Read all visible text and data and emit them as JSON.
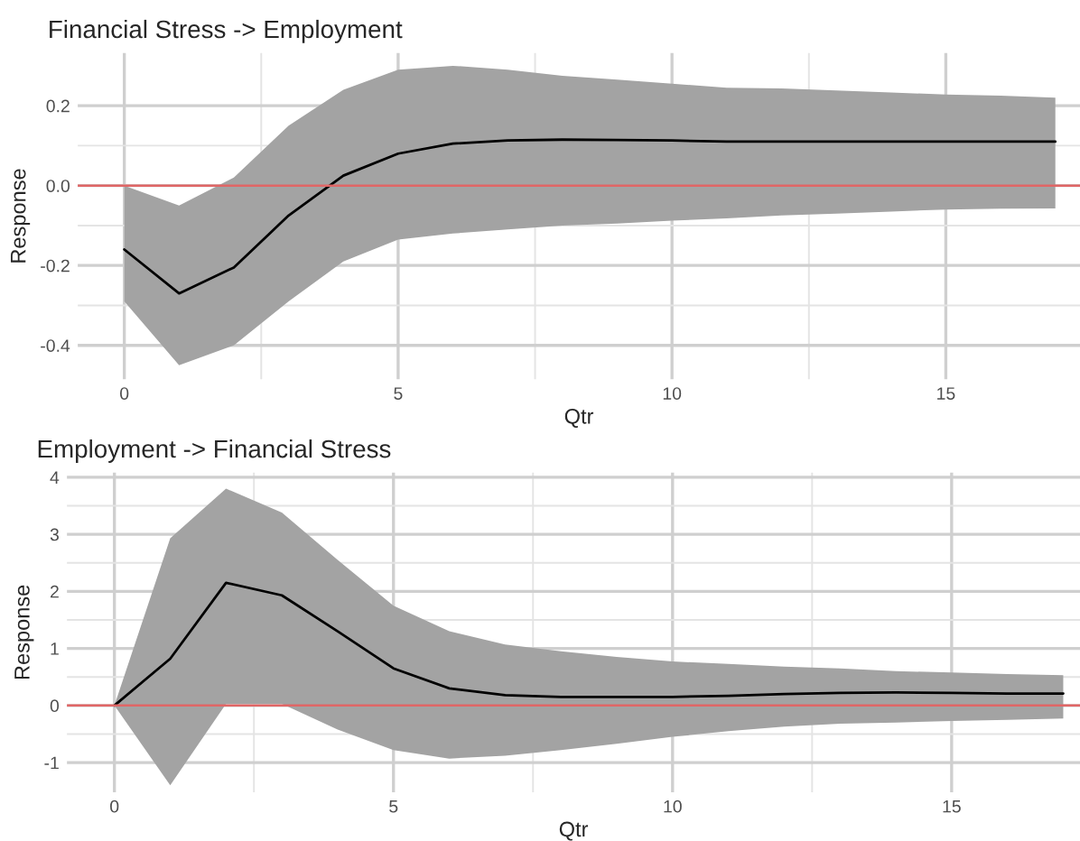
{
  "chart_data": [
    {
      "type": "line",
      "title": "Financial Stress -> Employment",
      "xlabel": "Qtr",
      "ylabel": "Response",
      "x": [
        0,
        1,
        2,
        3,
        4,
        5,
        6,
        7,
        8,
        9,
        10,
        11,
        12,
        13,
        14,
        15,
        16,
        17
      ],
      "series": [
        {
          "color": "#000000",
          "values": [
            -0.16,
            -0.27,
            -0.205,
            -0.075,
            0.025,
            0.08,
            0.105,
            0.113,
            0.115,
            0.114,
            0.113,
            0.11,
            0.11,
            0.11,
            0.11,
            0.11,
            0.11,
            0.11
          ],
          "lower": [
            -0.29,
            -0.45,
            -0.4,
            -0.29,
            -0.19,
            -0.135,
            -0.12,
            -0.11,
            -0.1,
            -0.095,
            -0.088,
            -0.082,
            -0.075,
            -0.07,
            -0.065,
            -0.06,
            -0.058,
            -0.057
          ],
          "upper": [
            0.0,
            -0.05,
            0.02,
            0.15,
            0.24,
            0.29,
            0.3,
            0.29,
            0.275,
            0.265,
            0.255,
            0.245,
            0.243,
            0.238,
            0.233,
            0.228,
            0.225,
            0.22
          ]
        }
      ],
      "xlim": [
        -0.85,
        17.45
      ],
      "ylim": [
        -0.485,
        0.332
      ],
      "xticks": [
        0,
        5,
        10,
        15
      ],
      "yticks": [
        {
          "value": -0.4,
          "label": "-0.4"
        },
        {
          "value": -0.2,
          "label": "-0.2"
        },
        {
          "value": 0,
          "label": "0.0"
        },
        {
          "value": 0.2,
          "label": "0.2"
        }
      ],
      "ref_lines": [
        {
          "axis": "y",
          "value": 0,
          "color": "#e06666"
        }
      ],
      "grid": true
    },
    {
      "type": "line",
      "title": "Employment -> Financial Stress",
      "xlabel": "Qtr",
      "ylabel": "Response",
      "x": [
        0,
        1,
        2,
        3,
        4,
        5,
        6,
        7,
        8,
        9,
        10,
        11,
        12,
        13,
        14,
        15,
        16,
        17
      ],
      "series": [
        {
          "color": "#000000",
          "values": [
            0,
            0.82,
            2.15,
            1.93,
            1.3,
            0.65,
            0.3,
            0.18,
            0.15,
            0.15,
            0.15,
            0.17,
            0.2,
            0.22,
            0.23,
            0.22,
            0.21,
            0.21
          ],
          "lower": [
            0,
            -1.4,
            0.03,
            0.03,
            -0.42,
            -0.78,
            -0.93,
            -0.88,
            -0.78,
            -0.67,
            -0.55,
            -0.45,
            -0.37,
            -0.32,
            -0.3,
            -0.27,
            -0.25,
            -0.23
          ],
          "upper": [
            0,
            2.93,
            3.8,
            3.38,
            2.55,
            1.75,
            1.3,
            1.07,
            0.95,
            0.85,
            0.77,
            0.73,
            0.68,
            0.65,
            0.6,
            0.58,
            0.55,
            0.53
          ]
        }
      ],
      "xlim": [
        -0.85,
        17.3
      ],
      "ylim": [
        -1.52,
        4.08
      ],
      "xticks": [
        0,
        5,
        10,
        15
      ],
      "yticks": [
        {
          "value": -1,
          "label": "-1"
        },
        0,
        1,
        2,
        3,
        4
      ],
      "ref_lines": [
        {
          "axis": "y",
          "value": 0,
          "color": "#e06666"
        }
      ],
      "grid": true
    }
  ]
}
